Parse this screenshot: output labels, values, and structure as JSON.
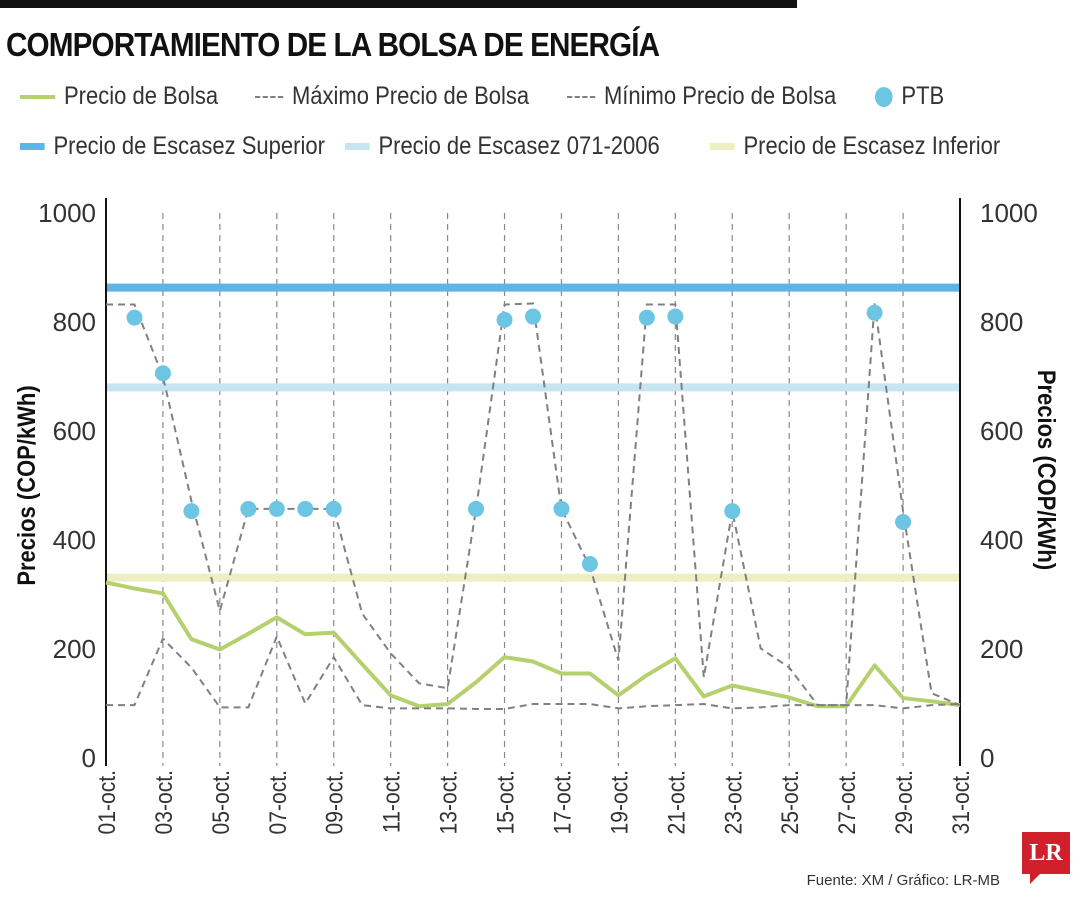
{
  "title": "COMPORTAMIENTO DE LA BOLSA DE ENERGÍA",
  "source": "Fuente:  XM / Gráfico: LR-MB",
  "logo": "LR",
  "colors": {
    "precio": "#b5d16e",
    "max_min": "#808080",
    "ptb": "#6cc6e3",
    "superior": "#5db4e5",
    "res071": "#c6e4f1",
    "inferior": "#ebefc1"
  },
  "legend": [
    {
      "label": "Precio de Bolsa",
      "type": "line"
    },
    {
      "label": "Máximo Precio de Bolsa",
      "type": "dashed"
    },
    {
      "label": "Mínimo Precio de Bolsa",
      "type": "dashed"
    },
    {
      "label": "PTB",
      "type": "dot"
    },
    {
      "label": "Precio de Escasez Superior",
      "type": "band"
    },
    {
      "label": "Precio de Escasez 071-2006",
      "type": "band"
    },
    {
      "label": "Precio de Escasez Inferior",
      "type": "band"
    }
  ],
  "chart_data": {
    "type": "line",
    "title": "COMPORTAMIENTO DE LA BOLSA DE ENERGÍA",
    "ylabel": "Precios (COP/kWh)",
    "ylabel_right": "Precios (COP/kWh)",
    "ylim": [
      0,
      1000
    ],
    "yticks": [
      0,
      200,
      400,
      600,
      800,
      1000
    ],
    "x": [
      "01-oct.",
      "02-oct.",
      "03-oct.",
      "04-oct.",
      "05-oct.",
      "06-oct.",
      "07-oct.",
      "08-oct.",
      "09-oct.",
      "10-oct.",
      "11-oct.",
      "12-oct.",
      "13-oct.",
      "14-oct.",
      "15-oct.",
      "16-oct.",
      "17-oct.",
      "18-oct.",
      "19-oct.",
      "20-oct.",
      "21-oct.",
      "22-oct.",
      "23-oct.",
      "24-oct.",
      "25-oct.",
      "26-oct.",
      "27-oct.",
      "28-oct.",
      "29-oct.",
      "30-oct.",
      "31-oct."
    ],
    "xtick_labels": [
      "01-oct.",
      "03-oct.",
      "05-oct.",
      "07-oct.",
      "09-oct.",
      "11-oct.",
      "13-oct.",
      "15-oct.",
      "17-oct.",
      "19-oct.",
      "21-oct.",
      "23-oct.",
      "25-oct.",
      "27-oct.",
      "29-oct.",
      "31-oct."
    ],
    "grid": "vertical dashed at labeled ticks",
    "legend_placement": "top",
    "series": [
      {
        "name": "Precio de Bolsa",
        "style": "solid",
        "values": [
          322,
          311,
          302,
          218,
          199,
          228,
          258,
          227,
          230,
          172,
          115,
          95,
          99,
          139,
          185,
          177,
          155,
          155,
          115,
          152,
          183,
          113,
          133,
          122,
          111,
          95,
          95,
          170,
          110,
          104,
          97
        ]
      },
      {
        "name": "Máximo Precio de Bolsa",
        "style": "dashed",
        "values": [
          832,
          832,
          700,
          472,
          270,
          457,
          457,
          457,
          457,
          265,
          192,
          137,
          128,
          457,
          832,
          834,
          457,
          350,
          179,
          832,
          832,
          148,
          453,
          201,
          166,
          97,
          97,
          834,
          453,
          119,
          97
        ]
      },
      {
        "name": "Mínimo Precio de Bolsa",
        "style": "dashed",
        "values": [
          97,
          97,
          219,
          166,
          93,
          93,
          223,
          100,
          185,
          97,
          91,
          91,
          91,
          90,
          90,
          99,
          99,
          99,
          91,
          95,
          97,
          99,
          91,
          93,
          97,
          97,
          97,
          97,
          91,
          97,
          99
        ]
      },
      {
        "name": "PTB",
        "style": "dots",
        "values": [
          null,
          808,
          706,
          453,
          null,
          457,
          457,
          457,
          457,
          null,
          null,
          null,
          null,
          457,
          804,
          810,
          457,
          356,
          null,
          808,
          810,
          null,
          453,
          null,
          null,
          null,
          null,
          817,
          433,
          null,
          null
        ]
      }
    ],
    "horizontal_lines": [
      {
        "name": "Precio de Escasez Superior",
        "value": 863
      },
      {
        "name": "Precio de Escasez 071-2006",
        "value": 680
      },
      {
        "name": "Precio de Escasez Inferior",
        "value": 331
      }
    ]
  }
}
